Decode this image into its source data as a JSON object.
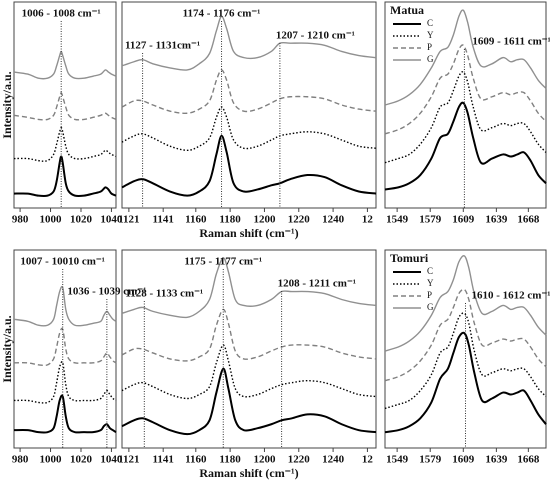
{
  "chart_data": [
    {
      "type": "line",
      "y_label": "Intensity/a.u.",
      "x": [
        976,
        985,
        992,
        998,
        1002,
        1004,
        1006,
        1007,
        1008,
        1010,
        1012,
        1016,
        1022,
        1028,
        1033,
        1036,
        1038,
        1040,
        1043
      ],
      "xlim": [
        976,
        1043
      ],
      "xticks": [
        980,
        1000,
        1020,
        1040
      ],
      "ylim": [
        0,
        10
      ],
      "annotations": [
        {
          "text": "1006 - 1008 cm⁻¹",
          "x": 1007
        }
      ],
      "series": [
        {
          "name": "C",
          "color": "#000000",
          "dash": "solid",
          "values": [
            0.7,
            0.7,
            0.6,
            0.6,
            0.8,
            1.3,
            2.2,
            2.5,
            2.2,
            1.2,
            0.8,
            0.6,
            0.6,
            0.7,
            0.8,
            1.0,
            0.9,
            0.7,
            0.6
          ]
        },
        {
          "name": "Y",
          "color": "#000000",
          "dash": "dotted",
          "values": [
            2.4,
            2.4,
            2.3,
            2.3,
            2.6,
            3.1,
            3.7,
            3.9,
            3.7,
            3.0,
            2.6,
            2.4,
            2.4,
            2.5,
            2.6,
            2.8,
            2.7,
            2.6,
            2.5
          ]
        },
        {
          "name": "P",
          "color": "#808080",
          "dash": "dashed",
          "values": [
            4.5,
            4.4,
            4.3,
            4.3,
            4.5,
            4.9,
            5.4,
            5.6,
            5.4,
            4.9,
            4.5,
            4.3,
            4.3,
            4.4,
            4.5,
            4.6,
            4.5,
            4.4,
            4.3
          ]
        },
        {
          "name": "G",
          "color": "#909090",
          "dash": "solid",
          "values": [
            6.6,
            6.5,
            6.3,
            6.3,
            6.5,
            6.9,
            7.4,
            7.6,
            7.4,
            6.9,
            6.5,
            6.3,
            6.3,
            6.4,
            6.5,
            6.7,
            6.6,
            6.5,
            6.4
          ]
        }
      ]
    },
    {
      "type": "line",
      "x_label": "Raman shift (cm⁻¹)",
      "x": [
        1117,
        1124,
        1129,
        1135,
        1145,
        1155,
        1162,
        1168,
        1172,
        1175,
        1178,
        1182,
        1188,
        1196,
        1204,
        1209,
        1215,
        1225,
        1235,
        1245,
        1255,
        1265
      ],
      "xlim": [
        1117,
        1265
      ],
      "xticks": [
        1121,
        1141,
        1160,
        1180,
        1200,
        1220,
        1240,
        {
          "value": 1260,
          "label": "12"
        }
      ],
      "ylim": [
        0,
        10
      ],
      "annotations": [
        {
          "text": "1174 - 1176 cm⁻¹",
          "x": 1175
        },
        {
          "text": "1127 - 1131cm⁻¹",
          "x": 1129
        },
        {
          "text": "1207 - 1210 cm⁻¹",
          "x": 1209
        }
      ],
      "series": [
        {
          "name": "C",
          "color": "#000000",
          "dash": "solid",
          "values": [
            1.0,
            1.3,
            1.4,
            1.2,
            0.8,
            0.6,
            0.8,
            1.3,
            2.6,
            3.5,
            2.7,
            1.2,
            0.8,
            0.9,
            1.1,
            1.2,
            1.4,
            1.6,
            1.5,
            1.1,
            0.8,
            0.7
          ]
        },
        {
          "name": "Y",
          "color": "#000000",
          "dash": "dotted",
          "values": [
            3.2,
            3.5,
            3.6,
            3.4,
            3.0,
            2.8,
            3.0,
            3.4,
            4.4,
            4.9,
            4.4,
            3.3,
            2.9,
            3.0,
            3.3,
            3.5,
            3.6,
            3.7,
            3.6,
            3.3,
            3.0,
            2.9
          ]
        },
        {
          "name": "P",
          "color": "#808080",
          "dash": "dashed",
          "values": [
            4.9,
            5.2,
            5.2,
            5.0,
            4.7,
            4.6,
            4.8,
            5.2,
            6.2,
            6.7,
            6.2,
            5.1,
            4.7,
            4.8,
            5.1,
            5.3,
            5.4,
            5.4,
            5.3,
            5.0,
            4.8,
            4.7
          ]
        },
        {
          "name": "G",
          "color": "#909090",
          "dash": "solid",
          "values": [
            6.9,
            7.1,
            7.2,
            7.0,
            6.8,
            6.7,
            7.0,
            7.5,
            8.6,
            9.3,
            8.7,
            7.6,
            7.3,
            7.3,
            7.6,
            8.0,
            8.0,
            8.0,
            7.9,
            7.6,
            7.4,
            7.3
          ]
        }
      ]
    },
    {
      "type": "line",
      "legend_title": "Matua",
      "x": [
        1538,
        1550,
        1560,
        1570,
        1580,
        1588,
        1595,
        1600,
        1605,
        1609,
        1613,
        1618,
        1625,
        1635,
        1645,
        1652,
        1658,
        1664,
        1670,
        1677,
        1684
      ],
      "xlim": [
        1538,
        1684
      ],
      "xticks": [
        1549,
        1579,
        1609,
        1639,
        1668
      ],
      "ylim": [
        0,
        10
      ],
      "annotations": [
        {
          "text": "1609 - 1611 cm⁻¹",
          "x": 1610
        }
      ],
      "series": [
        {
          "name": "C",
          "color": "#000000",
          "dash": "solid",
          "values": [
            0.9,
            1.0,
            1.2,
            1.6,
            2.4,
            3.4,
            3.6,
            4.2,
            4.9,
            5.1,
            4.6,
            3.4,
            2.2,
            2.4,
            2.6,
            2.5,
            2.6,
            2.7,
            2.3,
            1.6,
            1.2
          ]
        },
        {
          "name": "Y",
          "color": "#000000",
          "dash": "dotted",
          "values": [
            2.2,
            2.4,
            2.6,
            3.1,
            3.9,
            4.9,
            5.1,
            5.7,
            6.4,
            6.6,
            6.1,
            4.9,
            3.8,
            3.9,
            4.1,
            4.0,
            4.1,
            4.1,
            3.7,
            3.1,
            2.7
          ]
        },
        {
          "name": "P",
          "color": "#808080",
          "dash": "dashed",
          "values": [
            3.6,
            3.8,
            4.1,
            4.6,
            5.4,
            6.3,
            6.5,
            7.0,
            7.7,
            7.9,
            7.4,
            6.3,
            5.3,
            5.4,
            5.6,
            5.5,
            5.6,
            5.6,
            5.2,
            4.6,
            4.2
          ]
        },
        {
          "name": "G",
          "color": "#909090",
          "dash": "solid",
          "values": [
            5.0,
            5.2,
            5.5,
            6.0,
            6.8,
            7.6,
            7.8,
            8.4,
            9.3,
            9.6,
            9.0,
            7.8,
            6.9,
            7.0,
            7.3,
            7.1,
            7.2,
            7.2,
            6.8,
            6.2,
            5.8
          ]
        }
      ]
    },
    {
      "type": "line",
      "y_label": "Intensity/a.u.",
      "x": [
        976,
        985,
        992,
        998,
        1002,
        1004,
        1006,
        1008,
        1010,
        1012,
        1016,
        1022,
        1028,
        1033,
        1035,
        1037,
        1039,
        1041,
        1043
      ],
      "xlim": [
        976,
        1043
      ],
      "xticks": [
        980,
        1000,
        1020,
        1040
      ],
      "ylim": [
        0,
        10
      ],
      "annotations": [
        {
          "text": "1007 - 10010 cm⁻¹",
          "x": 1008
        },
        {
          "text": "1036 - 1039 cm⁻¹",
          "x": 1037
        }
      ],
      "series": [
        {
          "name": "C",
          "color": "#000000",
          "dash": "solid",
          "values": [
            0.9,
            0.9,
            0.8,
            0.8,
            1.0,
            1.6,
            2.4,
            2.6,
            1.6,
            1.0,
            0.8,
            0.8,
            0.8,
            0.9,
            1.1,
            1.2,
            1.0,
            0.9,
            0.8
          ]
        },
        {
          "name": "Y",
          "color": "#000000",
          "dash": "dotted",
          "values": [
            2.4,
            2.4,
            2.3,
            2.3,
            2.6,
            3.3,
            4.1,
            4.3,
            3.2,
            2.6,
            2.4,
            2.4,
            2.4,
            2.5,
            2.7,
            2.9,
            2.7,
            2.5,
            2.4
          ]
        },
        {
          "name": "P",
          "color": "#808080",
          "dash": "dashed",
          "values": [
            4.3,
            4.3,
            4.2,
            4.2,
            4.5,
            5.1,
            5.8,
            6.0,
            5.0,
            4.5,
            4.3,
            4.3,
            4.3,
            4.4,
            4.6,
            4.8,
            4.6,
            4.4,
            4.3
          ]
        },
        {
          "name": "G",
          "color": "#909090",
          "dash": "solid",
          "values": [
            6.5,
            6.4,
            6.2,
            6.2,
            6.5,
            7.2,
            7.9,
            8.1,
            7.0,
            6.5,
            6.2,
            6.2,
            6.3,
            6.4,
            6.7,
            6.9,
            6.7,
            6.5,
            6.4
          ]
        }
      ]
    },
    {
      "type": "line",
      "x_label": "Raman shift (cm⁻¹)",
      "x": [
        1117,
        1124,
        1129,
        1135,
        1145,
        1155,
        1162,
        1168,
        1172,
        1176,
        1179,
        1183,
        1188,
        1196,
        1204,
        1210,
        1216,
        1225,
        1235,
        1245,
        1255,
        1265
      ],
      "xlim": [
        1117,
        1265
      ],
      "xticks": [
        1121,
        1141,
        1160,
        1180,
        1200,
        1220,
        1240,
        {
          "value": 1260,
          "label": "12"
        }
      ],
      "ylim": [
        0,
        10
      ],
      "annotations": [
        {
          "text": "1175 - 1177 cm⁻¹",
          "x": 1176
        },
        {
          "text": "1128 - 1133 cm⁻¹",
          "x": 1130
        },
        {
          "text": "1208 - 1211 cm⁻¹",
          "x": 1210
        }
      ],
      "series": [
        {
          "name": "C",
          "color": "#000000",
          "dash": "solid",
          "values": [
            1.1,
            1.4,
            1.5,
            1.3,
            0.9,
            0.7,
            0.9,
            1.4,
            2.8,
            4.0,
            3.0,
            1.4,
            0.9,
            1.0,
            1.2,
            1.4,
            1.5,
            1.7,
            1.6,
            1.2,
            0.9,
            0.8
          ]
        },
        {
          "name": "Y",
          "color": "#000000",
          "dash": "dotted",
          "values": [
            2.9,
            3.2,
            3.3,
            3.1,
            2.7,
            2.5,
            2.7,
            3.1,
            4.3,
            5.2,
            4.4,
            3.0,
            2.6,
            2.7,
            3.0,
            3.2,
            3.3,
            3.4,
            3.3,
            3.0,
            2.7,
            2.6
          ]
        },
        {
          "name": "P",
          "color": "#808080",
          "dash": "dashed",
          "values": [
            4.7,
            5.0,
            5.0,
            4.8,
            4.5,
            4.4,
            4.6,
            5.0,
            6.2,
            7.0,
            6.3,
            4.9,
            4.5,
            4.6,
            4.9,
            5.1,
            5.2,
            5.2,
            5.1,
            4.8,
            4.6,
            4.5
          ]
        },
        {
          "name": "G",
          "color": "#909090",
          "dash": "solid",
          "values": [
            6.8,
            7.0,
            7.1,
            6.9,
            6.7,
            6.6,
            6.9,
            7.5,
            8.8,
            9.6,
            8.9,
            7.5,
            7.2,
            7.2,
            7.5,
            7.9,
            7.9,
            7.9,
            7.8,
            7.5,
            7.3,
            7.2
          ]
        }
      ]
    },
    {
      "type": "line",
      "legend_title": "Tomuri",
      "x": [
        1538,
        1550,
        1560,
        1570,
        1580,
        1588,
        1595,
        1600,
        1605,
        1610,
        1614,
        1619,
        1626,
        1635,
        1645,
        1652,
        1658,
        1664,
        1670,
        1677,
        1684
      ],
      "xlim": [
        1538,
        1684
      ],
      "xticks": [
        1549,
        1579,
        1609,
        1639,
        1668
      ],
      "ylim": [
        0,
        10
      ],
      "annotations": [
        {
          "text": "1610 - 1612 cm⁻¹",
          "x": 1611
        }
      ],
      "series": [
        {
          "name": "C",
          "color": "#000000",
          "dash": "solid",
          "values": [
            0.8,
            0.9,
            1.1,
            1.5,
            2.3,
            3.5,
            4.0,
            4.8,
            5.6,
            5.8,
            5.2,
            3.8,
            2.4,
            2.5,
            2.8,
            2.7,
            2.8,
            2.9,
            2.4,
            1.7,
            1.2
          ]
        },
        {
          "name": "Y",
          "color": "#000000",
          "dash": "dotted",
          "values": [
            2.0,
            2.2,
            2.4,
            2.9,
            3.7,
            4.8,
            5.1,
            5.8,
            6.6,
            6.8,
            6.3,
            4.9,
            3.7,
            3.8,
            4.0,
            3.9,
            4.0,
            4.0,
            3.6,
            3.0,
            2.6
          ]
        },
        {
          "name": "P",
          "color": "#808080",
          "dash": "dashed",
          "values": [
            3.4,
            3.6,
            3.9,
            4.4,
            5.2,
            6.2,
            6.5,
            7.1,
            7.8,
            8.0,
            7.5,
            6.3,
            5.2,
            5.3,
            5.5,
            5.4,
            5.5,
            5.5,
            5.1,
            4.5,
            4.1
          ]
        },
        {
          "name": "G",
          "color": "#909090",
          "dash": "solid",
          "values": [
            4.9,
            5.1,
            5.4,
            5.9,
            6.7,
            7.6,
            7.9,
            8.5,
            9.4,
            9.7,
            9.1,
            7.8,
            6.8,
            6.9,
            7.2,
            7.0,
            7.1,
            7.1,
            6.7,
            6.1,
            5.7
          ]
        }
      ]
    }
  ]
}
